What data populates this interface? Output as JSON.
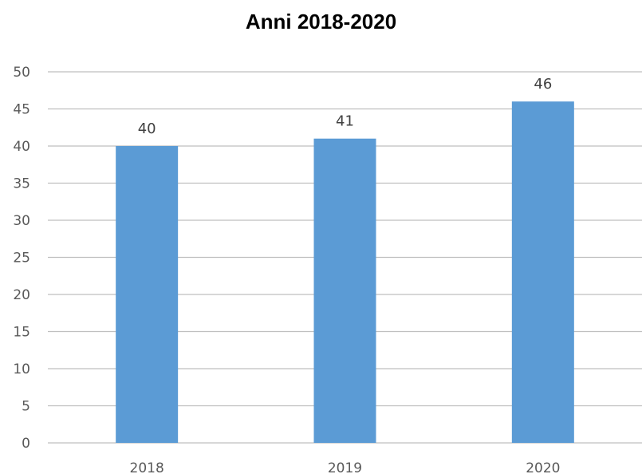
{
  "chart_data": {
    "type": "bar",
    "title": "Anni 2018-2020",
    "categories": [
      "2018",
      "2019",
      "2020"
    ],
    "values": [
      40,
      41,
      46
    ],
    "data_labels": [
      "40",
      "41",
      "46"
    ],
    "ylim": [
      0,
      50
    ],
    "yticks": [
      0,
      5,
      10,
      15,
      20,
      25,
      30,
      35,
      40,
      45,
      50
    ],
    "xlabel": "",
    "ylabel": "",
    "grid": true,
    "legend": "none",
    "colors": {
      "bar": "#5B9BD5",
      "grid": "#BFBFBF",
      "axis": "#BFBFBF",
      "tick_text": "#595959",
      "label_text": "#404040"
    }
  }
}
